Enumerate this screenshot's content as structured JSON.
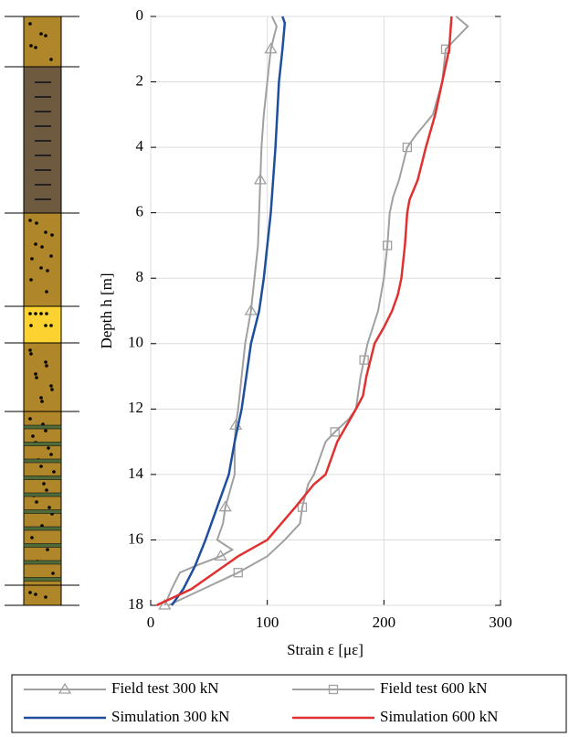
{
  "chart_data": {
    "type": "line",
    "xlabel": "Strain ε [με]",
    "ylabel": "Depth h [m]",
    "xlim": [
      0,
      300
    ],
    "xticks": [
      0,
      100,
      200,
      300
    ],
    "ylim": [
      0,
      18
    ],
    "yticks": [
      0,
      2,
      4,
      6,
      8,
      10,
      12,
      14,
      16,
      18
    ],
    "y_inverted": true,
    "grid": true,
    "legend": "bottom",
    "series": [
      {
        "name": "Field test 300 kN",
        "color": "#a0a0a0",
        "marker": "triangle",
        "depth": [
          0,
          0.3,
          1,
          2,
          3,
          4,
          5,
          6,
          7,
          8,
          9,
          10,
          11,
          12,
          12.5,
          13,
          14,
          14.5,
          15,
          15.5,
          16,
          16.3,
          16.5,
          16.8,
          17,
          17.5,
          18
        ],
        "values": [
          104,
          108,
          103,
          100,
          97,
          95,
          94,
          93,
          92,
          89,
          86,
          81,
          78,
          75,
          73,
          72,
          72,
          68,
          64,
          62,
          57,
          70,
          60,
          38,
          25,
          18,
          12
        ]
      },
      {
        "name": "Field test 600 kN",
        "color": "#a0a0a0",
        "marker": "square",
        "depth": [
          0,
          0.3,
          1,
          2,
          3,
          3.6,
          4,
          5,
          5.5,
          6,
          7,
          8,
          9,
          10,
          10.5,
          11,
          12,
          12.3,
          12.7,
          13,
          14,
          14.3,
          15,
          15.5,
          16,
          16.5,
          17,
          17.5,
          18
        ],
        "values": [
          262,
          272,
          253,
          250,
          242,
          228,
          220,
          213,
          208,
          205,
          203,
          200,
          195,
          186,
          183,
          180,
          176,
          170,
          158,
          150,
          140,
          135,
          130,
          128,
          115,
          100,
          75,
          45,
          15
        ]
      },
      {
        "name": "Simulation 300 kN",
        "color": "#1f4e9c",
        "marker": "none",
        "depth": [
          0,
          0.2,
          1,
          2,
          4,
          6,
          8,
          9,
          10,
          11,
          12,
          13,
          14,
          15,
          16,
          16.8,
          17.5,
          18
        ],
        "values": [
          113,
          115,
          113,
          110,
          107,
          103,
          97,
          93,
          86,
          82,
          78,
          72,
          67,
          57,
          47,
          38,
          28,
          18
        ]
      },
      {
        "name": "Simulation 600 kN",
        "color": "#e03030",
        "marker": "none",
        "depth": [
          0,
          1,
          2,
          3,
          4,
          5,
          5.6,
          6,
          7,
          8,
          8.5,
          9,
          9.5,
          10,
          11,
          11.6,
          12,
          12.5,
          13,
          14,
          14.3,
          15,
          16,
          16.5,
          17,
          17.5,
          18
        ],
        "values": [
          258,
          256,
          250,
          244,
          236,
          229,
          222,
          220,
          218,
          215,
          212,
          207,
          200,
          192,
          185,
          182,
          176,
          168,
          160,
          150,
          140,
          124,
          100,
          75,
          55,
          35,
          5
        ]
      }
    ]
  }
}
